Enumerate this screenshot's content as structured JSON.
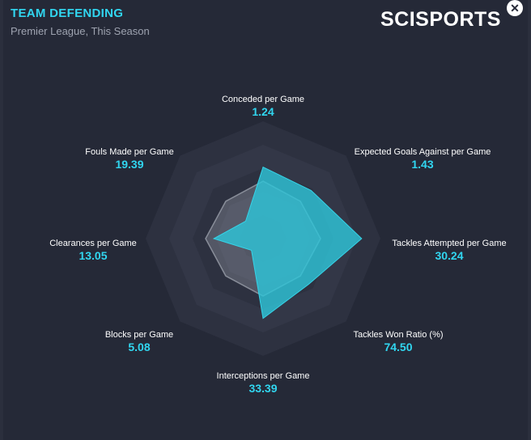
{
  "header": {
    "title": "TEAM DEFENDING",
    "subtitle": "Premier League, This Season",
    "logo": "SCISPORTS",
    "close_icon": "close-icon"
  },
  "colors": {
    "accent": "#31d6f0",
    "team_fill": "#2ec4d8",
    "average_fill": "#9aa0ad",
    "background": "#252937"
  },
  "chart_data": {
    "type": "radar",
    "title": "TEAM DEFENDING",
    "subtitle": "Premier League, This Season",
    "axes": [
      {
        "name": "Conceded per Game",
        "value": "1.24"
      },
      {
        "name": "Expected Goals Against per Game",
        "value": "1.43"
      },
      {
        "name": "Tackles Attempted per Game",
        "value": "30.24"
      },
      {
        "name": "Tackles Won Ratio (%)",
        "value": "74.50"
      },
      {
        "name": "Interceptions per Game",
        "value": "33.39"
      },
      {
        "name": "Blocks per Game",
        "value": "5.08"
      },
      {
        "name": "Clearances per Game",
        "value": "13.05"
      },
      {
        "name": "Fouls Made per Game",
        "value": "19.39"
      }
    ],
    "rings": 5,
    "series": [
      {
        "role": "team",
        "values": [
          0.61,
          0.58,
          0.84,
          0.55,
          0.68,
          0.14,
          0.42,
          0.21
        ]
      },
      {
        "role": "league-average",
        "values": [
          0.49,
          0.45,
          0.49,
          0.45,
          0.49,
          0.45,
          0.49,
          0.45
        ]
      }
    ]
  }
}
